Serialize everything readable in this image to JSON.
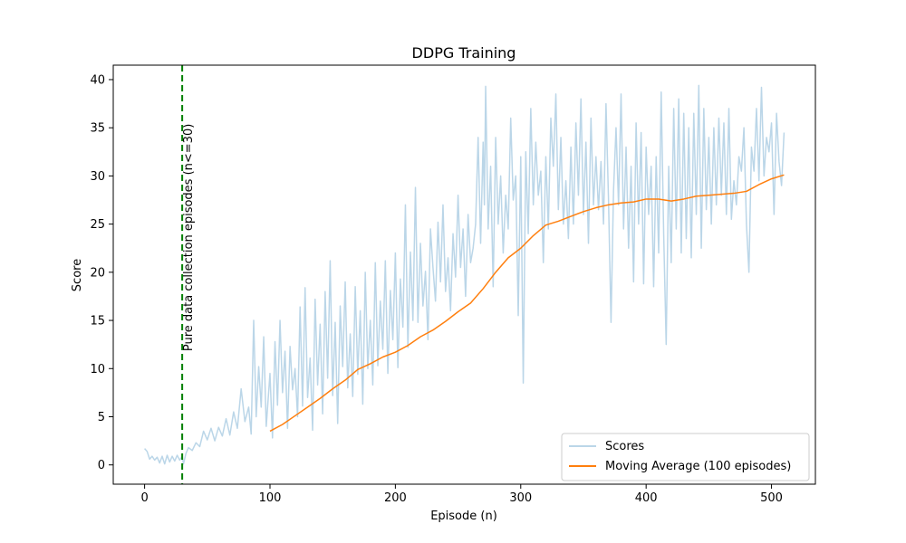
{
  "chart_data": {
    "type": "line",
    "title": "DDPG Training",
    "xlabel": "Episode (n)",
    "ylabel": "Score",
    "xlim": [
      -25,
      535
    ],
    "ylim": [
      -2,
      41.5
    ],
    "xticks": [
      0,
      100,
      200,
      300,
      400,
      500
    ],
    "yticks": [
      0,
      5,
      10,
      15,
      20,
      25,
      30,
      35,
      40
    ],
    "grid": false,
    "legend": "bottom-right",
    "annotation": {
      "x": 30,
      "text": "Pure data collection episodes (n<=30)",
      "color": "#008000",
      "style": "dashed"
    },
    "series": [
      {
        "name": "Scores",
        "color": "#1f77b4",
        "opacity": 0.3,
        "points": [
          [
            0,
            1.7
          ],
          [
            2,
            1.4
          ],
          [
            4,
            0.6
          ],
          [
            6,
            0.9
          ],
          [
            8,
            0.5
          ],
          [
            10,
            0.8
          ],
          [
            12,
            0.2
          ],
          [
            14,
            0.9
          ],
          [
            16,
            0.1
          ],
          [
            18,
            1.0
          ],
          [
            20,
            0.3
          ],
          [
            22,
            0.9
          ],
          [
            24,
            0.4
          ],
          [
            26,
            1.0
          ],
          [
            28,
            0.5
          ],
          [
            30,
            0.9
          ],
          [
            31,
            0.1
          ],
          [
            33,
            1.2
          ],
          [
            35,
            1.8
          ],
          [
            38,
            1.5
          ],
          [
            41,
            2.3
          ],
          [
            44,
            1.9
          ],
          [
            47,
            3.5
          ],
          [
            50,
            2.6
          ],
          [
            53,
            3.8
          ],
          [
            56,
            2.5
          ],
          [
            59,
            3.9
          ],
          [
            62,
            3.0
          ],
          [
            65,
            4.8
          ],
          [
            68,
            3.1
          ],
          [
            71,
            5.5
          ],
          [
            74,
            3.8
          ],
          [
            77,
            7.9
          ],
          [
            80,
            4.5
          ],
          [
            83,
            6.0
          ],
          [
            85,
            3.2
          ],
          [
            87,
            15.0
          ],
          [
            89,
            5.0
          ],
          [
            91,
            10.2
          ],
          [
            93,
            6.0
          ],
          [
            95,
            13.3
          ],
          [
            97,
            4.0
          ],
          [
            100,
            9.5
          ],
          [
            102,
            2.8
          ],
          [
            104,
            12.8
          ],
          [
            106,
            6.2
          ],
          [
            108,
            15.0
          ],
          [
            110,
            7.5
          ],
          [
            112,
            11.8
          ],
          [
            114,
            3.8
          ],
          [
            116,
            12.3
          ],
          [
            118,
            7.8
          ],
          [
            120,
            10.0
          ],
          [
            122,
            5.0
          ],
          [
            124,
            16.4
          ],
          [
            126,
            6.1
          ],
          [
            128,
            18.4
          ],
          [
            130,
            7.0
          ],
          [
            132,
            11.1
          ],
          [
            134,
            3.6
          ],
          [
            136,
            17.2
          ],
          [
            138,
            8.3
          ],
          [
            140,
            14.6
          ],
          [
            142,
            5.3
          ],
          [
            144,
            18.0
          ],
          [
            146,
            9.0
          ],
          [
            148,
            21.2
          ],
          [
            150,
            7.2
          ],
          [
            152,
            14.8
          ],
          [
            154,
            4.3
          ],
          [
            156,
            16.5
          ],
          [
            158,
            10.2
          ],
          [
            160,
            19.0
          ],
          [
            162,
            8.0
          ],
          [
            164,
            13.6
          ],
          [
            166,
            7.1
          ],
          [
            168,
            18.5
          ],
          [
            170,
            9.4
          ],
          [
            172,
            16.0
          ],
          [
            174,
            6.3
          ],
          [
            176,
            20.0
          ],
          [
            178,
            10.0
          ],
          [
            180,
            15.0
          ],
          [
            182,
            8.3
          ],
          [
            184,
            21.0
          ],
          [
            186,
            10.3
          ],
          [
            188,
            17.0
          ],
          [
            190,
            12.0
          ],
          [
            192,
            21.2
          ],
          [
            194,
            9.5
          ],
          [
            196,
            18.1
          ],
          [
            198,
            13.0
          ],
          [
            200,
            22.0
          ],
          [
            202,
            10.1
          ],
          [
            204,
            19.3
          ],
          [
            206,
            14.3
          ],
          [
            208,
            27.0
          ],
          [
            210,
            12.2
          ],
          [
            212,
            22.1
          ],
          [
            214,
            15.0
          ],
          [
            216,
            28.8
          ],
          [
            218,
            14.8
          ],
          [
            220,
            23.0
          ],
          [
            222,
            16.5
          ],
          [
            224,
            20.1
          ],
          [
            226,
            13.0
          ],
          [
            228,
            24.5
          ],
          [
            230,
            20.5
          ],
          [
            232,
            17.0
          ],
          [
            234,
            25.2
          ],
          [
            236,
            19.0
          ],
          [
            238,
            27.0
          ],
          [
            240,
            18.0
          ],
          [
            242,
            21.5
          ],
          [
            244,
            16.0
          ],
          [
            246,
            24.0
          ],
          [
            248,
            19.5
          ],
          [
            250,
            28.0
          ],
          [
            252,
            20.5
          ],
          [
            254,
            24.5
          ],
          [
            256,
            17.5
          ],
          [
            258,
            26.0
          ],
          [
            260,
            21.0
          ],
          [
            262,
            22.5
          ],
          [
            264,
            25.0
          ],
          [
            266,
            34.0
          ],
          [
            268,
            23.0
          ],
          [
            270,
            33.5
          ],
          [
            271,
            27.0
          ],
          [
            272,
            39.3
          ],
          [
            274,
            24.5
          ],
          [
            276,
            31.0
          ],
          [
            278,
            18.5
          ],
          [
            280,
            34.0
          ],
          [
            282,
            25.0
          ],
          [
            284,
            30.0
          ],
          [
            286,
            22.0
          ],
          [
            288,
            28.0
          ],
          [
            290,
            24.5
          ],
          [
            292,
            36.0
          ],
          [
            294,
            27.5
          ],
          [
            296,
            30.0
          ],
          [
            298,
            15.5
          ],
          [
            300,
            32.0
          ],
          [
            302,
            8.5
          ],
          [
            304,
            32.5
          ],
          [
            306,
            24.0
          ],
          [
            308,
            37.0
          ],
          [
            310,
            27.0
          ],
          [
            312,
            33.5
          ],
          [
            314,
            28.0
          ],
          [
            316,
            30.5
          ],
          [
            318,
            21.0
          ],
          [
            320,
            32.0
          ],
          [
            322,
            24.5
          ],
          [
            324,
            36.0
          ],
          [
            326,
            31.0
          ],
          [
            328,
            38.5
          ],
          [
            330,
            26.5
          ],
          [
            332,
            34.0
          ],
          [
            334,
            25.0
          ],
          [
            336,
            29.5
          ],
          [
            338,
            23.5
          ],
          [
            340,
            33.0
          ],
          [
            342,
            25.0
          ],
          [
            344,
            35.5
          ],
          [
            346,
            28.0
          ],
          [
            348,
            38.0
          ],
          [
            350,
            26.0
          ],
          [
            352,
            33.5
          ],
          [
            354,
            23.0
          ],
          [
            356,
            36.0
          ],
          [
            358,
            27.0
          ],
          [
            360,
            32.0
          ],
          [
            362,
            26.5
          ],
          [
            364,
            31.5
          ],
          [
            366,
            25.0
          ],
          [
            368,
            37.5
          ],
          [
            370,
            27.5
          ],
          [
            372,
            14.8
          ],
          [
            374,
            28.5
          ],
          [
            376,
            35.0
          ],
          [
            378,
            27.0
          ],
          [
            380,
            38.5
          ],
          [
            382,
            24.5
          ],
          [
            384,
            33.0
          ],
          [
            386,
            22.5
          ],
          [
            388,
            31.0
          ],
          [
            390,
            19.0
          ],
          [
            392,
            35.5
          ],
          [
            394,
            25.0
          ],
          [
            396,
            34.5
          ],
          [
            398,
            18.8
          ],
          [
            400,
            33.0
          ],
          [
            402,
            26.0
          ],
          [
            404,
            31.0
          ],
          [
            406,
            18.5
          ],
          [
            408,
            32.0
          ],
          [
            410,
            22.0
          ],
          [
            412,
            38.7
          ],
          [
            414,
            24.0
          ],
          [
            416,
            12.5
          ],
          [
            418,
            31.0
          ],
          [
            420,
            21.0
          ],
          [
            422,
            37.0
          ],
          [
            424,
            24.5
          ],
          [
            426,
            38.0
          ],
          [
            428,
            22.0
          ],
          [
            430,
            36.5
          ],
          [
            432,
            23.5
          ],
          [
            434,
            35.0
          ],
          [
            436,
            21.5
          ],
          [
            438,
            36.5
          ],
          [
            440,
            26.0
          ],
          [
            442,
            39.4
          ],
          [
            444,
            22.5
          ],
          [
            446,
            37.0
          ],
          [
            448,
            26.5
          ],
          [
            450,
            34.0
          ],
          [
            452,
            25.0
          ],
          [
            454,
            35.0
          ],
          [
            456,
            27.0
          ],
          [
            458,
            36.0
          ],
          [
            460,
            28.0
          ],
          [
            462,
            35.5
          ],
          [
            464,
            26.0
          ],
          [
            466,
            37.0
          ],
          [
            468,
            25.5
          ],
          [
            470,
            29.5
          ],
          [
            472,
            27.0
          ],
          [
            474,
            32.0
          ],
          [
            476,
            30.5
          ],
          [
            478,
            35.0
          ],
          [
            480,
            25.0
          ],
          [
            482,
            20.0
          ],
          [
            484,
            33.0
          ],
          [
            486,
            30.5
          ],
          [
            488,
            37.0
          ],
          [
            490,
            29.5
          ],
          [
            492,
            39.2
          ],
          [
            494,
            30.0
          ],
          [
            496,
            34.0
          ],
          [
            498,
            32.5
          ],
          [
            500,
            35.5
          ],
          [
            502,
            26.0
          ],
          [
            504,
            36.5
          ],
          [
            506,
            31.5
          ],
          [
            508,
            29.0
          ],
          [
            510,
            34.5
          ]
        ]
      },
      {
        "name": "Moving Average (100 episodes)",
        "color": "#ff7f0e",
        "opacity": 1,
        "points": [
          [
            100,
            3.5
          ],
          [
            110,
            4.2
          ],
          [
            120,
            5.1
          ],
          [
            130,
            6.0
          ],
          [
            140,
            6.9
          ],
          [
            150,
            7.9
          ],
          [
            160,
            8.8
          ],
          [
            170,
            9.9
          ],
          [
            180,
            10.5
          ],
          [
            190,
            11.2
          ],
          [
            200,
            11.7
          ],
          [
            210,
            12.4
          ],
          [
            220,
            13.3
          ],
          [
            230,
            14.0
          ],
          [
            240,
            14.9
          ],
          [
            250,
            15.9
          ],
          [
            260,
            16.8
          ],
          [
            270,
            18.3
          ],
          [
            280,
            20.0
          ],
          [
            290,
            21.5
          ],
          [
            300,
            22.5
          ],
          [
            310,
            23.8
          ],
          [
            320,
            24.9
          ],
          [
            330,
            25.3
          ],
          [
            340,
            25.8
          ],
          [
            350,
            26.3
          ],
          [
            360,
            26.7
          ],
          [
            370,
            27.0
          ],
          [
            380,
            27.2
          ],
          [
            390,
            27.3
          ],
          [
            400,
            27.6
          ],
          [
            410,
            27.6
          ],
          [
            420,
            27.4
          ],
          [
            430,
            27.6
          ],
          [
            440,
            27.9
          ],
          [
            450,
            28.0
          ],
          [
            460,
            28.1
          ],
          [
            470,
            28.2
          ],
          [
            480,
            28.4
          ],
          [
            490,
            29.1
          ],
          [
            500,
            29.7
          ],
          [
            510,
            30.1
          ]
        ]
      }
    ]
  }
}
